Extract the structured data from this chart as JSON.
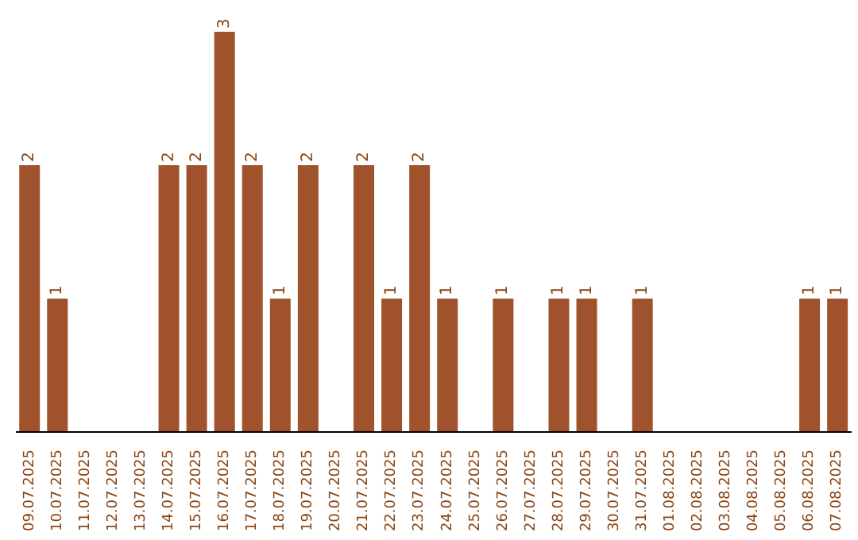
{
  "chart_data": {
    "type": "bar",
    "categories": [
      "09.07.2025",
      "10.07.2025",
      "11.07.2025",
      "12.07.2025",
      "13.07.2025",
      "14.07.2025",
      "15.07.2025",
      "16.07.2025",
      "17.07.2025",
      "18.07.2025",
      "19.07.2025",
      "20.07.2025",
      "21.07.2025",
      "22.07.2025",
      "23.07.2025",
      "24.07.2025",
      "25.07.2025",
      "26.07.2025",
      "27.07.2025",
      "28.07.2025",
      "29.07.2025",
      "30.07.2025",
      "31.07.2025",
      "01.08.2025",
      "02.08.2025",
      "03.08.2025",
      "04.08.2025",
      "05.08.2025",
      "06.08.2025",
      "07.08.2025"
    ],
    "values": [
      2,
      1,
      null,
      null,
      null,
      2,
      2,
      3,
      2,
      1,
      2,
      null,
      2,
      1,
      2,
      1,
      null,
      1,
      null,
      1,
      1,
      null,
      1,
      null,
      null,
      null,
      null,
      null,
      1,
      1
    ],
    "color": "#a0522d",
    "data_labels": true
  }
}
